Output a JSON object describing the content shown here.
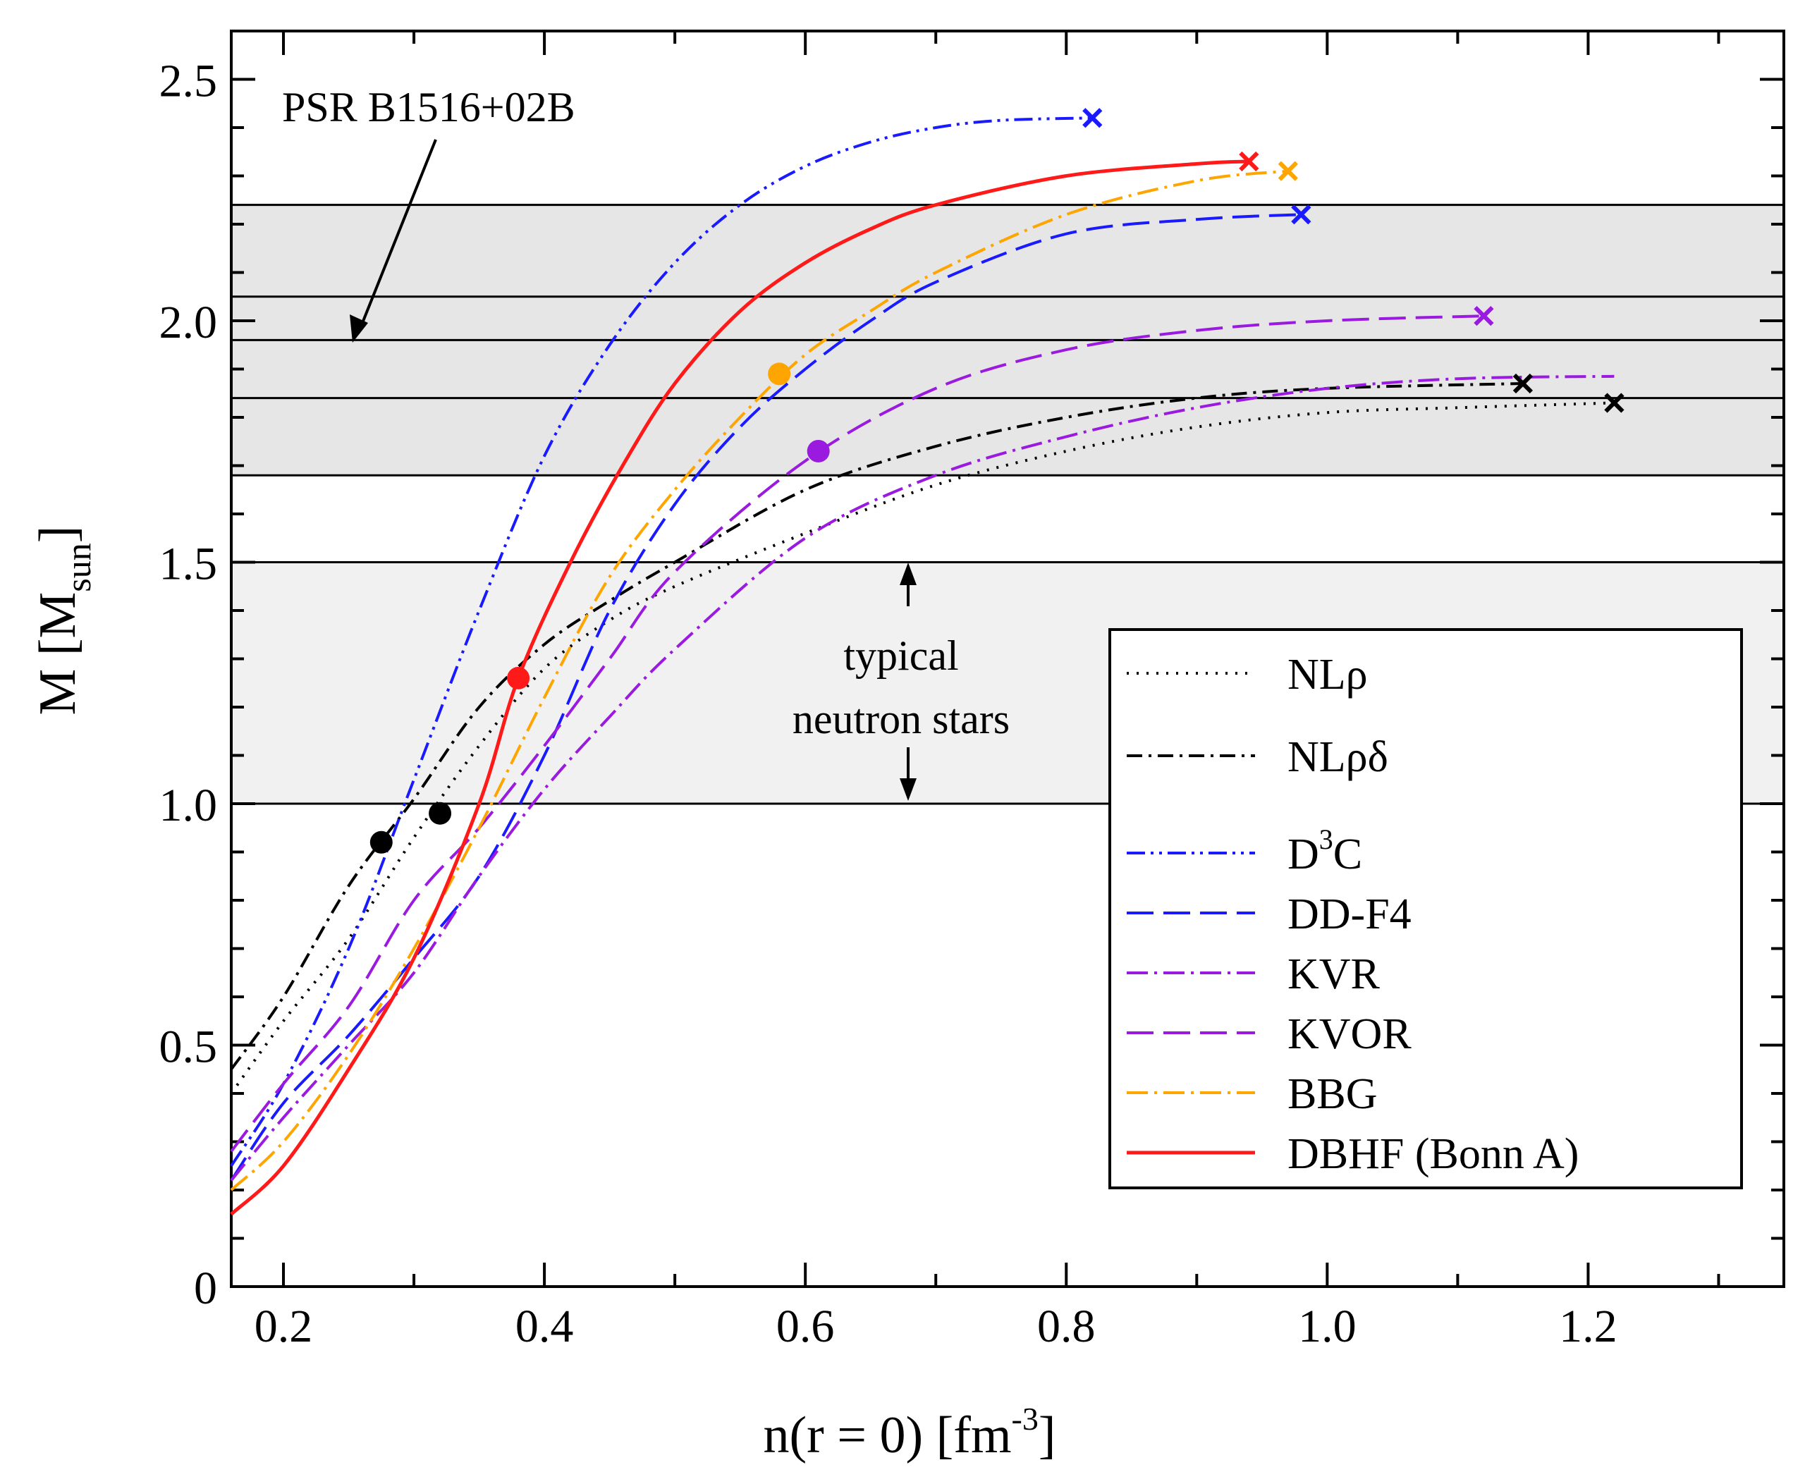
{
  "chart_data": {
    "type": "line",
    "xlabel": {
      "main": "n(r = 0)   [fm",
      "sup": "-3",
      "tail": "]"
    },
    "ylabel": {
      "main": "M  [M",
      "sub": "sun",
      "tail": "]"
    },
    "xlim": [
      0.16,
      1.35
    ],
    "ylim": [
      0,
      2.6
    ],
    "x_ticks": [
      {
        "value": 0.2,
        "label": "0.2"
      },
      {
        "value": 0.4,
        "label": "0.4"
      },
      {
        "value": 0.6,
        "label": "0.6"
      },
      {
        "value": 0.8,
        "label": "0.8"
      },
      {
        "value": 1.0,
        "label": "1.0"
      },
      {
        "value": 1.2,
        "label": "1.2"
      }
    ],
    "y_ticks": [
      {
        "value": 0,
        "label": "0"
      },
      {
        "value": 0.5,
        "label": "0.5"
      },
      {
        "value": 1.0,
        "label": "1.0"
      },
      {
        "value": 1.5,
        "label": "1.5"
      },
      {
        "value": 2.0,
        "label": "2.0"
      },
      {
        "value": 2.5,
        "label": "2.5"
      }
    ],
    "bands": [
      {
        "y0": 1.68,
        "y1": 2.24,
        "fill": "#e6e6e6"
      },
      {
        "y0": 1.0,
        "y1": 1.5,
        "fill": "#f1f1f1"
      }
    ],
    "hlines": [
      1.0,
      1.5,
      1.68,
      1.84,
      1.96,
      2.05,
      2.24
    ],
    "annotations": {
      "psr_label": "PSR B1516+02B",
      "typical_line1": "typical",
      "typical_line2": "neutron stars"
    },
    "series": [
      {
        "name": "NLρ",
        "color": "#000000",
        "dash": "3 11",
        "width": 4,
        "x": [
          0.16,
          0.2,
          0.25,
          0.3,
          0.35,
          0.4,
          0.45,
          0.5,
          0.6,
          0.7,
          0.8,
          0.9,
          1.0,
          1.1,
          1.22
        ],
        "y": [
          0.4,
          0.55,
          0.72,
          0.93,
          1.12,
          1.28,
          1.38,
          1.45,
          1.56,
          1.66,
          1.73,
          1.78,
          1.81,
          1.82,
          1.83
        ],
        "end_marker": "x",
        "dot": {
          "x": 0.275,
          "y": 0.92
        }
      },
      {
        "name": "NLρδ",
        "color": "#000000",
        "dash": "22 9 4 9",
        "width": 4,
        "x": [
          0.16,
          0.2,
          0.25,
          0.3,
          0.35,
          0.4,
          0.45,
          0.5,
          0.6,
          0.7,
          0.8,
          0.9,
          1.0,
          1.15
        ],
        "y": [
          0.45,
          0.6,
          0.83,
          1.01,
          1.2,
          1.33,
          1.42,
          1.5,
          1.65,
          1.74,
          1.8,
          1.84,
          1.86,
          1.87
        ],
        "end_marker": "x",
        "dot": {
          "x": 0.32,
          "y": 0.98
        }
      },
      {
        "name": "D3C",
        "name_base": "D",
        "name_sup": "3",
        "name_tail": "C",
        "color": "#1a1aff",
        "dash": "26 8 4 8 4 8",
        "width": 4,
        "x": [
          0.16,
          0.2,
          0.25,
          0.3,
          0.35,
          0.4,
          0.45,
          0.5,
          0.55,
          0.6,
          0.65,
          0.7,
          0.75,
          0.82
        ],
        "y": [
          0.25,
          0.42,
          0.7,
          1.05,
          1.4,
          1.72,
          1.95,
          2.12,
          2.24,
          2.32,
          2.37,
          2.4,
          2.415,
          2.42
        ],
        "end_marker": "x"
      },
      {
        "name": "DD-F4",
        "color": "#1a1aff",
        "dash": "38 14",
        "width": 4,
        "x": [
          0.16,
          0.2,
          0.25,
          0.3,
          0.35,
          0.4,
          0.45,
          0.5,
          0.55,
          0.6,
          0.65,
          0.7,
          0.8,
          0.9,
          0.98
        ],
        "y": [
          0.22,
          0.38,
          0.52,
          0.68,
          0.85,
          1.1,
          1.4,
          1.62,
          1.78,
          1.9,
          2.0,
          2.08,
          2.18,
          2.21,
          2.22
        ],
        "end_marker": "x"
      },
      {
        "name": "KVR",
        "color": "#9a1adf",
        "dash": "30 9 4 9",
        "width": 4,
        "x": [
          0.16,
          0.2,
          0.25,
          0.3,
          0.35,
          0.4,
          0.45,
          0.5,
          0.6,
          0.7,
          0.8,
          0.9,
          1.0,
          1.1,
          1.22
        ],
        "y": [
          0.22,
          0.35,
          0.5,
          0.65,
          0.85,
          1.03,
          1.18,
          1.32,
          1.55,
          1.68,
          1.76,
          1.82,
          1.86,
          1.88,
          1.885
        ],
        "end_marker": "none"
      },
      {
        "name": "KVOR",
        "color": "#9a1adf",
        "dash": "38 14",
        "width": 4,
        "x": [
          0.16,
          0.2,
          0.25,
          0.3,
          0.35,
          0.4,
          0.45,
          0.5,
          0.6,
          0.7,
          0.8,
          0.9,
          1.0,
          1.12
        ],
        "y": [
          0.28,
          0.42,
          0.58,
          0.8,
          0.95,
          1.12,
          1.3,
          1.48,
          1.71,
          1.86,
          1.94,
          1.98,
          2.0,
          2.01
        ],
        "end_marker": "x",
        "dot": {
          "x": 0.61,
          "y": 1.73
        }
      },
      {
        "name": "BBG",
        "color": "#ffa500",
        "dash": "30 9 4 9",
        "width": 4,
        "x": [
          0.16,
          0.2,
          0.25,
          0.3,
          0.35,
          0.4,
          0.45,
          0.5,
          0.55,
          0.6,
          0.65,
          0.7,
          0.8,
          0.9,
          0.97
        ],
        "y": [
          0.2,
          0.3,
          0.48,
          0.7,
          0.95,
          1.22,
          1.47,
          1.65,
          1.8,
          1.93,
          2.02,
          2.1,
          2.22,
          2.29,
          2.31
        ],
        "end_marker": "x",
        "dot": {
          "x": 0.58,
          "y": 1.89
        }
      },
      {
        "name": "DBHF (Bonn A)",
        "color": "#ff1a1a",
        "dash": "",
        "width": 5,
        "x": [
          0.16,
          0.2,
          0.25,
          0.3,
          0.35,
          0.38,
          0.42,
          0.46,
          0.5,
          0.55,
          0.6,
          0.65,
          0.7,
          0.8,
          0.9,
          0.94
        ],
        "y": [
          0.15,
          0.25,
          0.45,
          0.68,
          1.0,
          1.26,
          1.5,
          1.7,
          1.87,
          2.02,
          2.12,
          2.19,
          2.24,
          2.3,
          2.325,
          2.33
        ],
        "end_marker": "x",
        "dot": {
          "x": 0.38,
          "y": 1.26
        }
      }
    ]
  }
}
